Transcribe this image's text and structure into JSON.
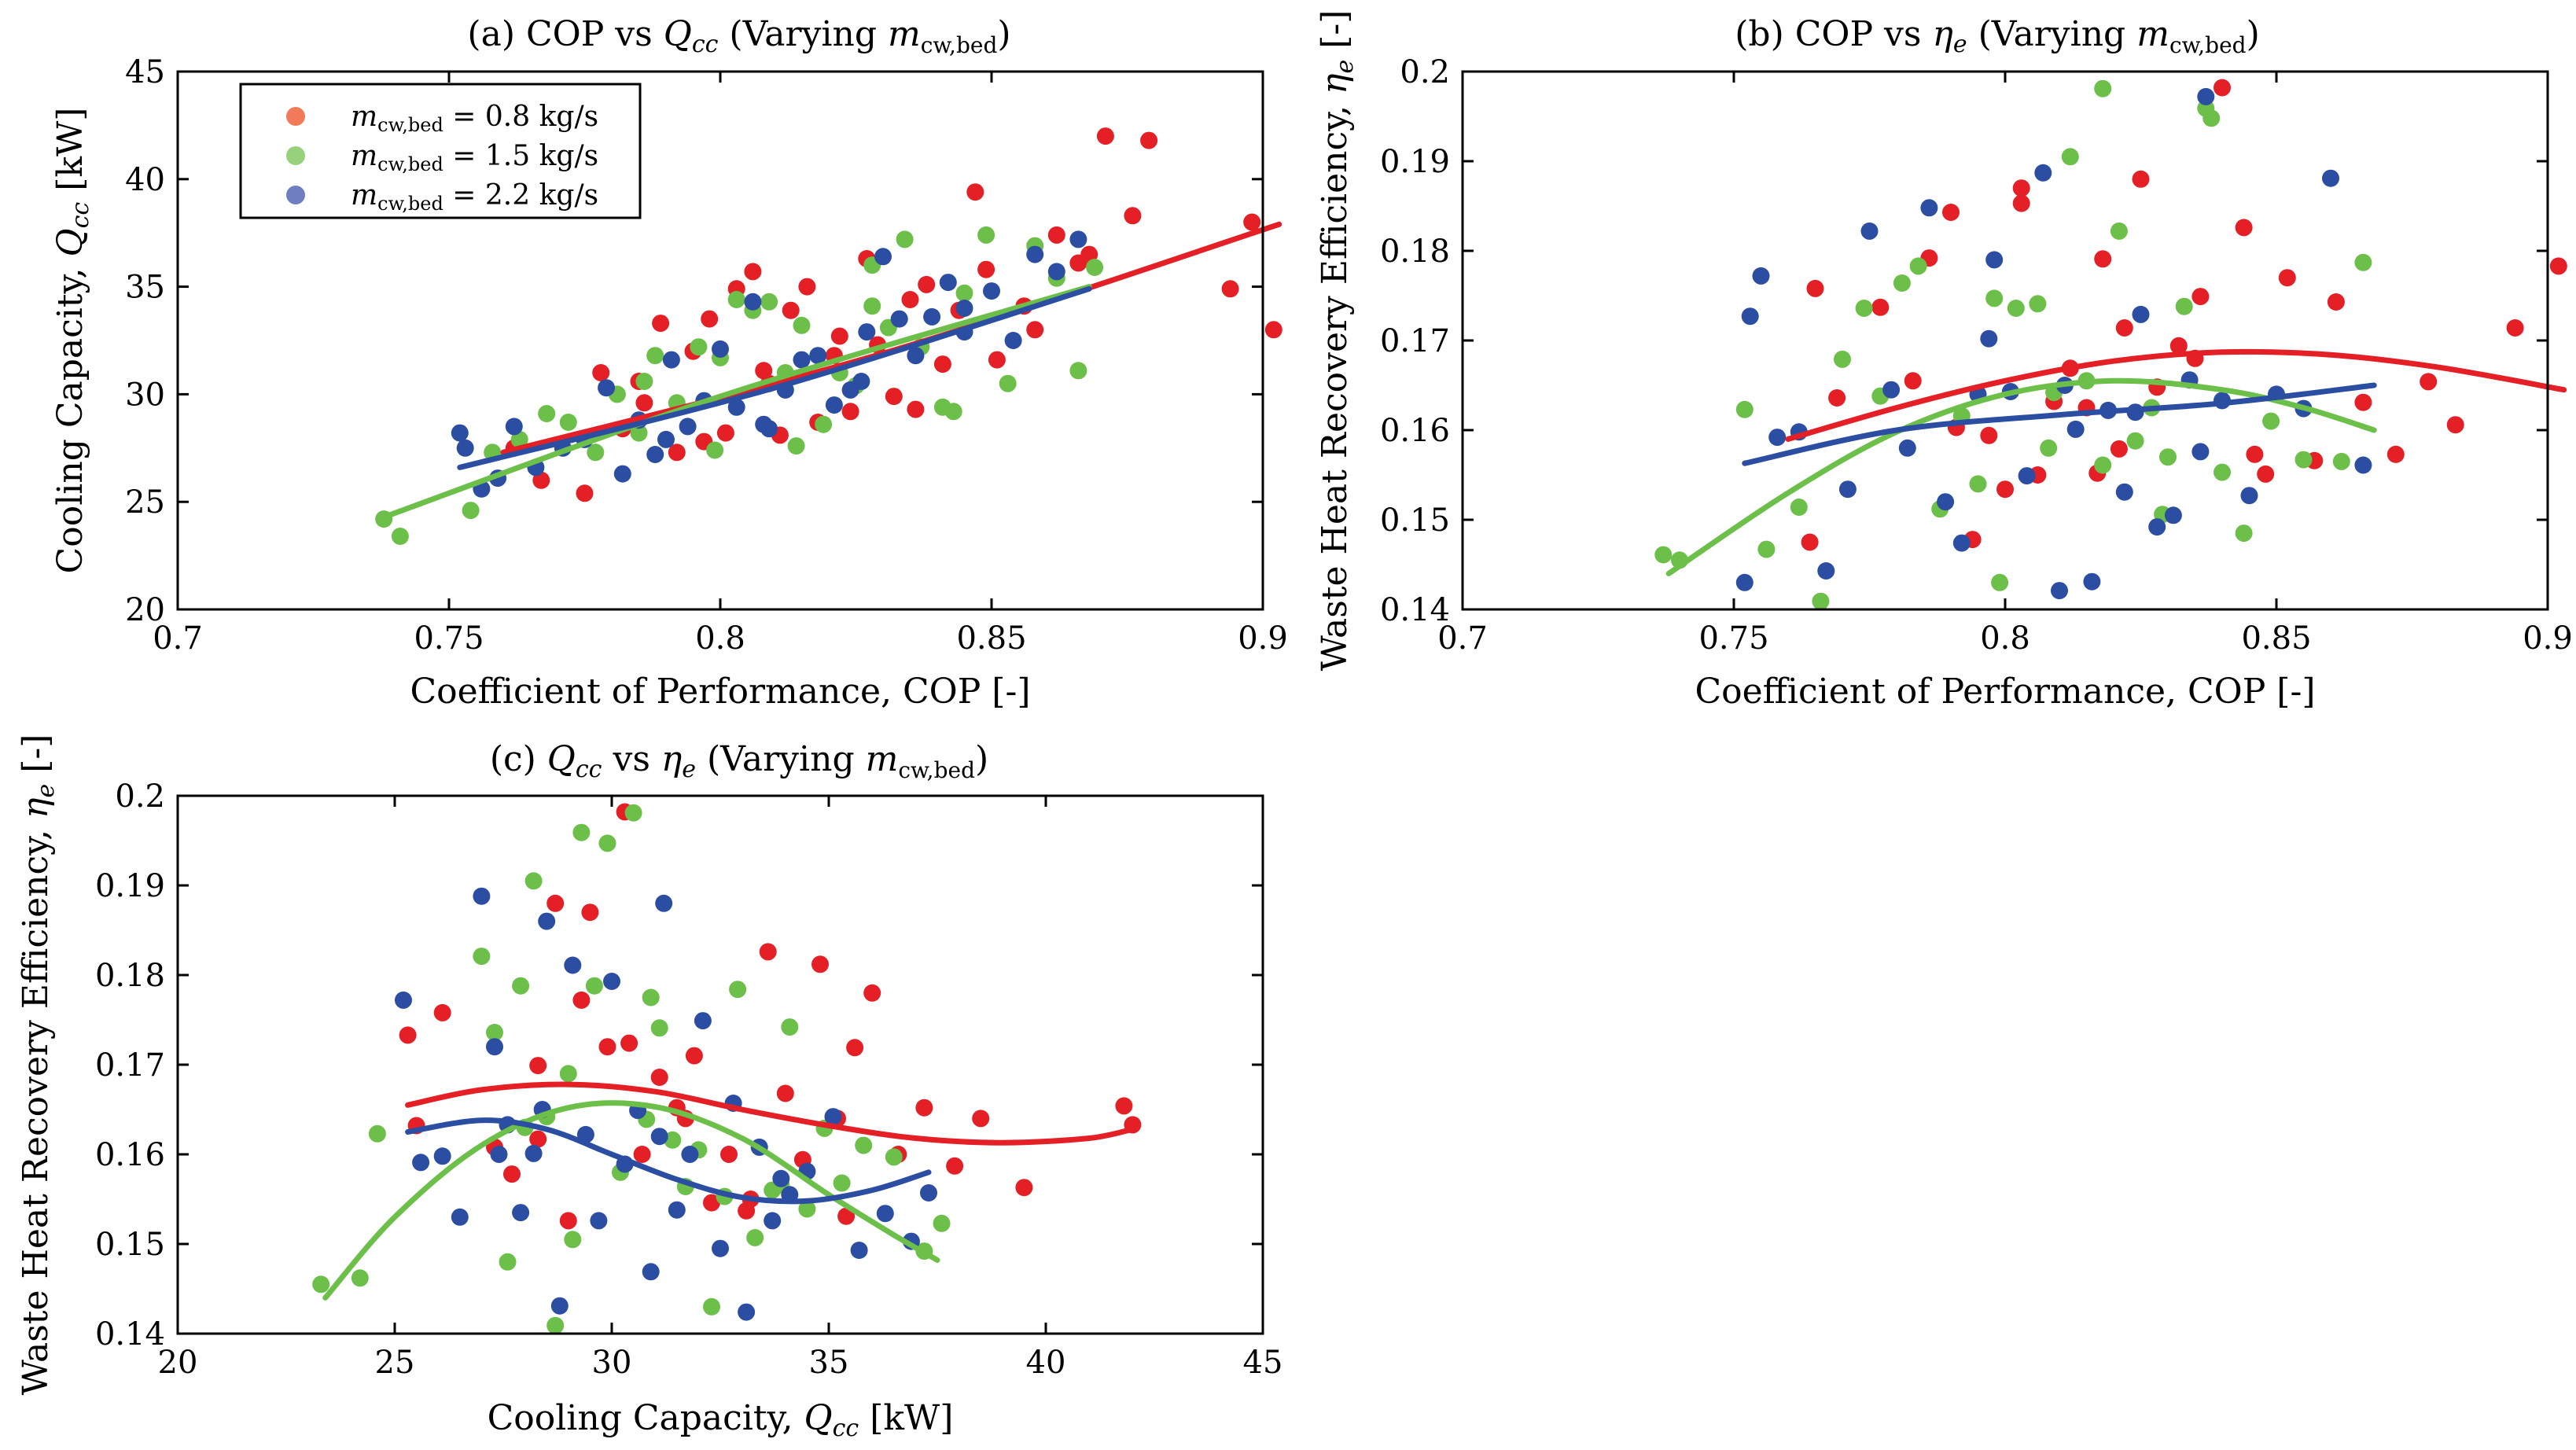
{
  "colors": {
    "s08": "#e41f26",
    "s15": "#6cc04a",
    "s22": "#2b4ea2",
    "legend08": "#f07a5a",
    "legend15": "#98d17c",
    "legend22": "#6f7fc1"
  },
  "legend": [
    "m_cw,bed = 0.8 kg/s",
    "m_cw,bed = 1.5 kg/s",
    "m_cw,bed = 2.2 kg/s"
  ],
  "chart_data": [
    {
      "type": "scatter",
      "title": "(a) COP vs Q_cc (Varying m_cw,bed)",
      "xlabel": "Coefficient of Performance, COP [-]",
      "ylabel": "Cooling Capacity, Q_cc [kW]",
      "xlim": [
        0.7,
        0.9
      ],
      "ylim": [
        20,
        45
      ],
      "xticks": [
        "0.7",
        "0.75",
        "0.8",
        "0.85",
        "0.9"
      ],
      "yticks": [
        "20",
        "25",
        "30",
        "35",
        "40",
        "45"
      ],
      "legend_position": "top-left",
      "series": [
        {
          "name": "m_cw,bed = 0.8 kg/s",
          "color": "#e41f26",
          "x": [
            0.762,
            0.767,
            0.775,
            0.778,
            0.782,
            0.786,
            0.789,
            0.792,
            0.795,
            0.798,
            0.801,
            0.803,
            0.806,
            0.808,
            0.811,
            0.813,
            0.816,
            0.818,
            0.821,
            0.824,
            0.827,
            0.829,
            0.832,
            0.835,
            0.838,
            0.841,
            0.844,
            0.847,
            0.851,
            0.856,
            0.862,
            0.866,
            0.871,
            0.876,
            0.879,
            0.894,
            0.898,
            0.902,
            0.785,
            0.797,
            0.809,
            0.822,
            0.836,
            0.849,
            0.858,
            0.868
          ],
          "y": [
            27.5,
            26.0,
            25.4,
            31.0,
            28.4,
            29.6,
            33.3,
            27.3,
            32.0,
            33.5,
            28.2,
            34.9,
            35.7,
            31.1,
            28.1,
            33.9,
            35.0,
            28.7,
            31.8,
            29.2,
            36.3,
            32.3,
            29.9,
            34.4,
            35.1,
            31.4,
            33.9,
            39.4,
            31.6,
            34.1,
            37.4,
            36.1,
            42.0,
            38.3,
            41.8,
            34.9,
            38.0,
            33.0,
            30.6,
            27.8,
            30.5,
            32.7,
            29.3,
            35.8,
            33.0,
            36.5
          ]
        },
        {
          "name": "m_cw,bed = 1.5 kg/s",
          "color": "#6cc04a",
          "x": [
            0.738,
            0.741,
            0.754,
            0.758,
            0.763,
            0.768,
            0.772,
            0.777,
            0.781,
            0.785,
            0.788,
            0.792,
            0.796,
            0.799,
            0.803,
            0.806,
            0.809,
            0.812,
            0.815,
            0.819,
            0.822,
            0.825,
            0.828,
            0.831,
            0.834,
            0.837,
            0.841,
            0.845,
            0.849,
            0.853,
            0.858,
            0.862,
            0.866,
            0.869,
            0.786,
            0.8,
            0.814,
            0.828,
            0.843
          ],
          "y": [
            24.2,
            23.4,
            24.6,
            27.3,
            27.9,
            29.1,
            28.7,
            27.3,
            30.0,
            28.2,
            31.8,
            29.6,
            32.2,
            27.4,
            34.4,
            33.9,
            34.3,
            31.0,
            33.2,
            28.6,
            31.0,
            30.4,
            34.1,
            33.1,
            37.2,
            32.2,
            29.4,
            34.7,
            37.4,
            30.5,
            36.9,
            35.4,
            31.1,
            35.9,
            30.6,
            31.7,
            27.6,
            36.0,
            29.2
          ]
        },
        {
          "name": "m_cw,bed = 2.2 kg/s",
          "color": "#2b4ea2",
          "x": [
            0.752,
            0.753,
            0.756,
            0.759,
            0.762,
            0.766,
            0.771,
            0.775,
            0.779,
            0.782,
            0.785,
            0.788,
            0.791,
            0.794,
            0.797,
            0.8,
            0.803,
            0.806,
            0.809,
            0.812,
            0.815,
            0.818,
            0.821,
            0.824,
            0.827,
            0.83,
            0.833,
            0.836,
            0.839,
            0.842,
            0.845,
            0.85,
            0.854,
            0.858,
            0.862,
            0.866,
            0.79,
            0.808,
            0.826,
            0.845
          ],
          "y": [
            28.2,
            27.5,
            25.6,
            26.1,
            28.5,
            26.6,
            27.5,
            27.9,
            30.3,
            26.3,
            28.8,
            27.2,
            31.6,
            28.5,
            29.7,
            32.1,
            29.4,
            34.3,
            28.4,
            30.2,
            31.6,
            31.8,
            29.5,
            30.2,
            32.9,
            36.4,
            33.5,
            31.8,
            33.6,
            35.2,
            32.9,
            34.8,
            32.5,
            36.5,
            35.7,
            37.2,
            27.9,
            28.6,
            30.6,
            34.0
          ]
        }
      ],
      "fits": [
        {
          "color": "#e41f26",
          "x": [
            0.76,
            0.83,
            0.903
          ],
          "y": [
            27.3,
            31.9,
            37.9
          ]
        },
        {
          "color": "#6cc04a",
          "x": [
            0.737,
            0.8,
            0.868
          ],
          "y": [
            24.2,
            29.9,
            35.0
          ]
        },
        {
          "color": "#2b4ea2",
          "x": [
            0.752,
            0.81,
            0.868
          ],
          "y": [
            26.6,
            30.3,
            34.9
          ]
        }
      ]
    },
    {
      "type": "scatter",
      "title": "(b) COP vs η_e (Varying m_cw,bed)",
      "xlabel": "Coefficient of Performance, COP [-]",
      "ylabel": "Waste Heat Recovery Efficiency, η_e [-]",
      "xlim": [
        0.7,
        0.9
      ],
      "ylim": [
        0.14,
        0.2
      ],
      "xticks": [
        "0.7",
        "0.75",
        "0.8",
        "0.85",
        "0.9"
      ],
      "yticks": [
        "0.14",
        "0.15",
        "0.16",
        "0.17",
        "0.18",
        "0.19",
        "0.2"
      ],
      "series": [
        {
          "name": "m_cw,bed = 0.8 kg/s",
          "color": "#e41f26",
          "x": [
            0.764,
            0.765,
            0.769,
            0.777,
            0.783,
            0.786,
            0.79,
            0.794,
            0.797,
            0.8,
            0.803,
            0.806,
            0.809,
            0.812,
            0.815,
            0.818,
            0.821,
            0.825,
            0.828,
            0.832,
            0.836,
            0.84,
            0.844,
            0.848,
            0.852,
            0.857,
            0.861,
            0.866,
            0.872,
            0.878,
            0.883,
            0.894,
            0.902,
            0.803,
            0.822,
            0.846,
            0.817,
            0.791,
            0.835
          ],
          "y": [
            0.1475,
            0.1758,
            0.1636,
            0.1737,
            0.1655,
            0.1792,
            0.1843,
            0.1478,
            0.1594,
            0.1534,
            0.187,
            0.155,
            0.1632,
            0.1669,
            0.1625,
            0.1791,
            0.1579,
            0.188,
            0.1648,
            0.1694,
            0.1749,
            0.1982,
            0.1826,
            0.1551,
            0.177,
            0.1566,
            0.1743,
            0.1631,
            0.1573,
            0.1654,
            0.1606,
            0.1714,
            0.1783,
            0.1853,
            0.1714,
            0.1573,
            0.1552,
            0.1603,
            0.168
          ]
        },
        {
          "name": "m_cw,bed = 1.5 kg/s",
          "color": "#6cc04a",
          "x": [
            0.737,
            0.74,
            0.752,
            0.756,
            0.762,
            0.766,
            0.77,
            0.774,
            0.777,
            0.781,
            0.784,
            0.788,
            0.792,
            0.795,
            0.799,
            0.802,
            0.806,
            0.809,
            0.812,
            0.815,
            0.818,
            0.821,
            0.824,
            0.827,
            0.83,
            0.833,
            0.837,
            0.84,
            0.844,
            0.849,
            0.855,
            0.862,
            0.866,
            0.818,
            0.798,
            0.838,
            0.829,
            0.808
          ],
          "y": [
            0.1461,
            0.1455,
            0.1623,
            0.1467,
            0.1514,
            0.1409,
            0.1679,
            0.1736,
            0.1638,
            0.1764,
            0.1783,
            0.1512,
            0.1616,
            0.154,
            0.143,
            0.1736,
            0.1741,
            0.1642,
            0.1905,
            0.1655,
            0.1561,
            0.1822,
            0.1588,
            0.1625,
            0.157,
            0.1738,
            0.1959,
            0.1553,
            0.1485,
            0.161,
            0.1567,
            0.1565,
            0.1787,
            0.1981,
            0.1747,
            0.1948,
            0.1506,
            0.158
          ]
        },
        {
          "name": "m_cw,bed = 2.2 kg/s",
          "color": "#2b4ea2",
          "x": [
            0.752,
            0.753,
            0.755,
            0.758,
            0.762,
            0.767,
            0.771,
            0.775,
            0.779,
            0.782,
            0.786,
            0.789,
            0.792,
            0.795,
            0.798,
            0.801,
            0.804,
            0.807,
            0.81,
            0.813,
            0.816,
            0.819,
            0.822,
            0.825,
            0.828,
            0.831,
            0.834,
            0.837,
            0.84,
            0.845,
            0.85,
            0.855,
            0.86,
            0.866,
            0.811,
            0.824,
            0.797,
            0.836
          ],
          "y": [
            0.143,
            0.1727,
            0.1772,
            0.1592,
            0.1598,
            0.1443,
            0.1534,
            0.1822,
            0.1645,
            0.158,
            0.1848,
            0.152,
            0.1474,
            0.164,
            0.179,
            0.1643,
            0.1549,
            0.1887,
            0.1421,
            0.1601,
            0.1431,
            0.1622,
            0.1531,
            0.1729,
            0.1492,
            0.1505,
            0.1656,
            0.1972,
            0.1633,
            0.1527,
            0.164,
            0.1624,
            0.1881,
            0.1561,
            0.165,
            0.162,
            0.1702,
            0.1576
          ]
        }
      ],
      "fits": [
        {
          "color": "#e41f26",
          "x": [
            0.76,
            0.78,
            0.8,
            0.82,
            0.84,
            0.86,
            0.88,
            0.903
          ],
          "y": [
            0.159,
            0.1625,
            0.1655,
            0.1677,
            0.1687,
            0.1684,
            0.167,
            0.1645
          ]
        },
        {
          "color": "#6cc04a",
          "x": [
            0.738,
            0.76,
            0.78,
            0.8,
            0.82,
            0.84,
            0.855,
            0.868
          ],
          "y": [
            0.144,
            0.153,
            0.1598,
            0.164,
            0.1655,
            0.1645,
            0.1625,
            0.16
          ]
        },
        {
          "color": "#2b4ea2",
          "x": [
            0.752,
            0.78,
            0.81,
            0.84,
            0.868
          ],
          "y": [
            0.1563,
            0.16,
            0.1617,
            0.163,
            0.165
          ]
        }
      ]
    },
    {
      "type": "scatter",
      "title": "(c) Q_cc vs η_e (Varying m_cw,bed)",
      "xlabel": "Cooling Capacity, Q_cc [kW]",
      "ylabel": "Waste Heat Recovery Efficiency, η_e [-]",
      "xlim": [
        20,
        45
      ],
      "ylim": [
        0.14,
        0.2
      ],
      "xticks": [
        "20",
        "25",
        "30",
        "35",
        "40",
        "45"
      ],
      "yticks": [
        "0.14",
        "0.15",
        "0.16",
        "0.17",
        "0.18",
        "0.19",
        "0.2"
      ],
      "series": [
        {
          "name": "m_cw,bed = 0.8 kg/s",
          "color": "#e41f26",
          "x": [
            25.3,
            25.5,
            26.1,
            27.3,
            27.7,
            28.3,
            28.7,
            29.0,
            29.5,
            29.9,
            30.3,
            30.7,
            31.1,
            31.5,
            31.9,
            32.3,
            32.7,
            33.1,
            33.6,
            34.0,
            34.4,
            34.8,
            35.2,
            35.6,
            36.0,
            36.6,
            37.2,
            37.9,
            38.5,
            39.5,
            41.8,
            42.0,
            29.3,
            30.4,
            33.2,
            31.7,
            35.4,
            28.3
          ],
          "y": [
            0.1733,
            0.1632,
            0.1758,
            0.1608,
            0.1578,
            0.1617,
            0.188,
            0.1526,
            0.187,
            0.172,
            0.1982,
            0.16,
            0.1686,
            0.1652,
            0.171,
            0.1546,
            0.16,
            0.1537,
            0.1826,
            0.1668,
            0.1594,
            0.1812,
            0.164,
            0.1719,
            0.178,
            0.16,
            0.1652,
            0.1587,
            0.164,
            0.1563,
            0.1654,
            0.1633,
            0.1772,
            0.1724,
            0.155,
            0.164,
            0.1531,
            0.1699
          ]
        },
        {
          "name": "m_cw,bed = 1.5 kg/s",
          "color": "#6cc04a",
          "x": [
            23.3,
            24.2,
            24.6,
            27.0,
            27.3,
            27.6,
            27.9,
            28.2,
            28.5,
            28.7,
            29.0,
            29.3,
            29.6,
            29.9,
            30.2,
            30.5,
            30.8,
            31.1,
            31.4,
            31.7,
            32.0,
            32.3,
            32.6,
            32.9,
            33.3,
            33.7,
            34.1,
            34.5,
            34.9,
            35.3,
            35.8,
            36.5,
            37.2,
            37.6,
            29.1,
            30.9,
            33.9,
            28.0
          ],
          "y": [
            0.1455,
            0.1462,
            0.1623,
            0.1821,
            0.1736,
            0.148,
            0.1788,
            0.1905,
            0.1642,
            0.1409,
            0.169,
            0.1959,
            0.1788,
            0.1947,
            0.158,
            0.1981,
            0.1639,
            0.1741,
            0.1616,
            0.1564,
            0.1605,
            0.143,
            0.1553,
            0.1784,
            0.1507,
            0.156,
            0.1742,
            0.1539,
            0.1629,
            0.1568,
            0.161,
            0.1597,
            0.1492,
            0.1523,
            0.1505,
            0.1775,
            0.1566,
            0.163
          ]
        },
        {
          "name": "m_cw,bed = 2.2 kg/s",
          "color": "#2b4ea2",
          "x": [
            25.2,
            25.6,
            26.1,
            26.5,
            27.0,
            27.3,
            27.6,
            27.9,
            28.2,
            28.5,
            28.8,
            29.1,
            29.4,
            29.7,
            30.0,
            30.3,
            30.6,
            30.9,
            31.2,
            31.5,
            31.8,
            32.1,
            32.5,
            32.8,
            33.1,
            33.4,
            33.7,
            34.1,
            34.5,
            35.1,
            35.7,
            36.3,
            36.9,
            37.3,
            28.4,
            31.1,
            33.9,
            27.4
          ],
          "y": [
            0.1772,
            0.1591,
            0.1598,
            0.153,
            0.1888,
            0.172,
            0.1633,
            0.1535,
            0.1601,
            0.186,
            0.1431,
            0.1811,
            0.1622,
            0.1526,
            0.1793,
            0.1589,
            0.1649,
            0.1469,
            0.188,
            0.1538,
            0.16,
            0.1749,
            0.1495,
            0.1657,
            0.1424,
            0.1608,
            0.1526,
            0.1555,
            0.1581,
            0.1642,
            0.1493,
            0.1534,
            0.1503,
            0.1557,
            0.165,
            0.162,
            0.1573,
            0.16
          ]
        }
      ],
      "fits": [
        {
          "color": "#e41f26",
          "x": [
            25.3,
            27,
            29,
            31,
            33,
            35,
            37,
            39,
            41,
            42
          ],
          "y": [
            0.1655,
            0.1672,
            0.1678,
            0.167,
            0.165,
            0.1632,
            0.1618,
            0.1613,
            0.1618,
            0.1628
          ]
        },
        {
          "color": "#6cc04a",
          "x": [
            23.4,
            25,
            27,
            29,
            31,
            33,
            35,
            36.5,
            37.5
          ],
          "y": [
            0.144,
            0.153,
            0.161,
            0.1652,
            0.1653,
            0.1618,
            0.1555,
            0.151,
            0.1482
          ]
        },
        {
          "color": "#2b4ea2",
          "x": [
            25.3,
            27,
            28.5,
            30,
            31.5,
            33,
            34.5,
            36,
            37.3
          ],
          "y": [
            0.1625,
            0.1638,
            0.1628,
            0.16,
            0.1572,
            0.1552,
            0.1548,
            0.156,
            0.158
          ]
        }
      ]
    }
  ]
}
